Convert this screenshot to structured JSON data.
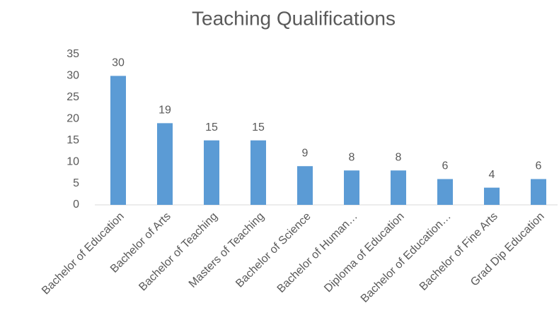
{
  "chart_data": {
    "type": "bar",
    "title": "Teaching Qualifications",
    "categories": [
      "Bachelor of Education",
      "Bachelor of Arts",
      "Bachelor of Teaching",
      "Masters of Teaching",
      "Bachelor of Science",
      "Bachelor of Human…",
      "Diploma of Education",
      "Bachelor of Education…",
      "Bachelor of Fine Arts",
      "Grad Dip Education"
    ],
    "values": [
      30,
      19,
      15,
      15,
      9,
      8,
      8,
      6,
      4,
      6
    ],
    "color": "#5b9bd5",
    "ylim": [
      0,
      35
    ],
    "yticks": [
      0,
      5,
      10,
      15,
      20,
      25,
      30,
      35
    ],
    "grid": false
  }
}
